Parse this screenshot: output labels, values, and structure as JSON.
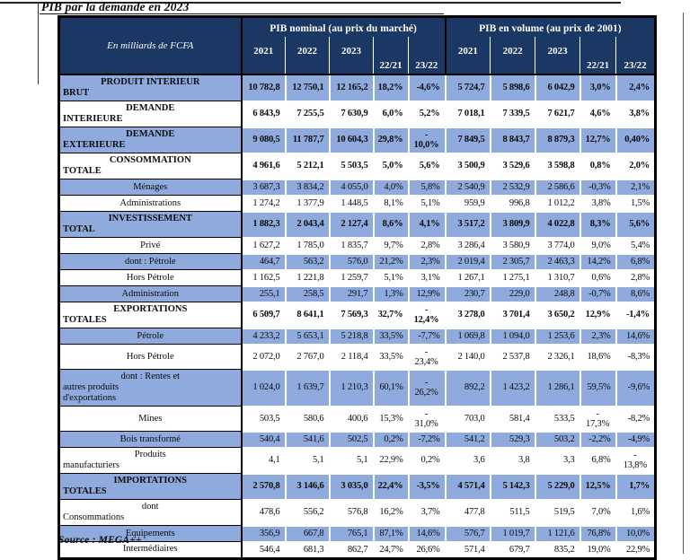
{
  "page": {
    "title": "PIB par la demande en 2023",
    "source": "Source : MEGA++"
  },
  "table": {
    "corner_label": "En milliards de FCFA",
    "groups": [
      {
        "label": "PIB nominal (au prix du marché)"
      },
      {
        "label": "PIB en volume (au prix de 2001)"
      }
    ],
    "sub_columns": [
      "2021",
      "2022",
      "2023",
      "22/21",
      "23/22"
    ],
    "colors": {
      "header_bg": "#1B3764",
      "shaded_row_bg": "#8FAADC",
      "header_text": "#FFFFFF",
      "border": "#000000"
    },
    "rows": [
      {
        "label_lines": [
          "PRODUIT INTERIEUR",
          "BRUT"
        ],
        "bold": true,
        "shaded": true,
        "nominal": [
          "10 782,8",
          "12 750,1",
          "12 165,2",
          "18,2%",
          "-4,6%"
        ],
        "volume": [
          "5 724,7",
          "5 898,6",
          "6 042,9",
          "3,0%",
          "2,4%"
        ]
      },
      {
        "label_lines": [
          "DEMANDE",
          "INTERIEURE"
        ],
        "bold": true,
        "shaded": false,
        "nominal": [
          "6 843,9",
          "7 255,5",
          "7 630,9",
          "6,0%",
          "5,2%"
        ],
        "volume": [
          "7 018,1",
          "7 339,5",
          "7 621,7",
          "4,6%",
          "3,8%"
        ]
      },
      {
        "label_lines": [
          "DEMANDE",
          "EXTERIEURE"
        ],
        "bold": true,
        "shaded": true,
        "nominal": [
          "9 080,5",
          "11 787,7",
          "10 604,3",
          "29,8%",
          "-\n10,0%"
        ],
        "volume": [
          "7 849,5",
          "8 843,7",
          "8 879,3",
          "12,7%",
          "0,40%"
        ]
      },
      {
        "label_lines": [
          "CONSOMMATION",
          "TOTALE"
        ],
        "bold": true,
        "shaded": false,
        "nominal": [
          "4 961,6",
          "5 212,1",
          "5 503,5",
          "5,0%",
          "5,6%"
        ],
        "volume": [
          "3 500,9",
          "3 529,6",
          "3 598,8",
          "0,8%",
          "2,0%"
        ]
      },
      {
        "label_lines": [
          "Ménages"
        ],
        "bold": false,
        "shaded": true,
        "nominal": [
          "3 687,3",
          "3 834,2",
          "4 055,0",
          "4,0%",
          "5,8%"
        ],
        "volume": [
          "2 540,9",
          "2 532,9",
          "2 586,6",
          "-0,3%",
          "2,1%"
        ]
      },
      {
        "label_lines": [
          "Administrations"
        ],
        "bold": false,
        "shaded": false,
        "nominal": [
          "1 274,2",
          "1 377,9",
          "1 448,5",
          "8,1%",
          "5,1%"
        ],
        "volume": [
          "959,9",
          "996,8",
          "1 012,2",
          "3,8%",
          "1,5%"
        ]
      },
      {
        "label_lines": [
          "INVESTISSEMENT",
          "TOTAL"
        ],
        "bold": true,
        "shaded": true,
        "nominal": [
          "1 882,3",
          "2 043,4",
          "2 127,4",
          "8,6%",
          "4,1%"
        ],
        "volume": [
          "3 517,2",
          "3 809,9",
          "4 022,8",
          "8,3%",
          "5,6%"
        ]
      },
      {
        "label_lines": [
          "Privé"
        ],
        "bold": false,
        "shaded": false,
        "nominal": [
          "1 627,2",
          "1 785,0",
          "1 835,7",
          "9,7%",
          "2,8%"
        ],
        "volume": [
          "3 286,4",
          "3 580,9",
          "3 774,0",
          "9,0%",
          "5,4%"
        ]
      },
      {
        "label_lines": [
          "dont : Pétrole"
        ],
        "bold": false,
        "shaded": true,
        "nominal": [
          "464,7",
          "563,2",
          "576,0",
          "21,2%",
          "2,3%"
        ],
        "volume": [
          "2 019,4",
          "2 305,7",
          "2 463,3",
          "14,2%",
          "6,8%"
        ]
      },
      {
        "label_lines": [
          "Hors Pétrole"
        ],
        "bold": false,
        "shaded": false,
        "nominal": [
          "1 162,5",
          "1 221,8",
          "1 259,7",
          "5,1%",
          "3,1%"
        ],
        "volume": [
          "1 267,1",
          "1 275,1",
          "1 310,7",
          "0,6%",
          "2,8%"
        ]
      },
      {
        "label_lines": [
          "Administration"
        ],
        "bold": false,
        "shaded": true,
        "nominal": [
          "255,1",
          "258,5",
          "291,7",
          "1,3%",
          "12,9%"
        ],
        "volume": [
          "230,7",
          "229,0",
          "248,8",
          "-0,7%",
          "8,6%"
        ]
      },
      {
        "label_lines": [
          "EXPORTATIONS",
          "TOTALES"
        ],
        "bold": true,
        "shaded": false,
        "nominal": [
          "6 509,7",
          "8 641,1",
          "7 569,3",
          "32,7%",
          "-\n12,4%"
        ],
        "volume": [
          "3 278,0",
          "3 701,4",
          "3 650,2",
          "12,9%",
          "-1,4%"
        ]
      },
      {
        "label_lines": [
          "Pétrole"
        ],
        "bold": false,
        "shaded": true,
        "nominal": [
          "4 233,2",
          "5 653,1",
          "5 218,8",
          "33,5%",
          "-7,7%"
        ],
        "volume": [
          "1 069,8",
          "1 094,0",
          "1 253,6",
          "2,3%",
          "14,6%"
        ]
      },
      {
        "label_lines": [
          "Hors Pétrole"
        ],
        "bold": false,
        "shaded": false,
        "nominal": [
          "2 072,0",
          "2 767,0",
          "2 118,4",
          "33,5%",
          "-\n23,4%"
        ],
        "volume": [
          "2 140,0",
          "2 537,8",
          "2 326,1",
          "18,6%",
          "-8,3%"
        ]
      },
      {
        "label_lines": [
          "dont : Rentes et",
          "autres produits",
          "d'exportations"
        ],
        "bold": false,
        "shaded": true,
        "nominal": [
          "1 024,0",
          "1 639,7",
          "1 210,3",
          "60,1%",
          "-\n26,2%"
        ],
        "volume": [
          "892,2",
          "1 423,2",
          "1 286,1",
          "59,5%",
          "-9,6%"
        ]
      },
      {
        "label_lines": [
          "Mines"
        ],
        "bold": false,
        "shaded": false,
        "nominal": [
          "503,5",
          "580,6",
          "400,6",
          "15,3%",
          "-\n31,0%"
        ],
        "volume": [
          "703,0",
          "581,4",
          "533,5",
          "-\n17,3%",
          "-8,2%"
        ]
      },
      {
        "label_lines": [
          "Bois transformé"
        ],
        "bold": false,
        "shaded": true,
        "nominal": [
          "540,4",
          "541,6",
          "502,5",
          "0,2%",
          "-7,2%"
        ],
        "volume": [
          "541,2",
          "529,3",
          "503,2",
          "-2,2%",
          "-4,9%"
        ]
      },
      {
        "label_lines": [
          "Produits",
          "manufacturiers"
        ],
        "bold": false,
        "shaded": false,
        "nominal": [
          "4,1",
          "5,1",
          "5,1",
          "22,9%",
          "0,2%"
        ],
        "volume": [
          "3,6",
          "3,8",
          "3,3",
          "6,8%",
          "-\n13,8%"
        ]
      },
      {
        "label_lines": [
          "IMPORTATIONS",
          "TOTALES"
        ],
        "bold": true,
        "shaded": true,
        "nominal": [
          "2 570,8",
          "3 146,6",
          "3 035,0",
          "22,4%",
          "-3,5%"
        ],
        "volume": [
          "4 571,4",
          "5 142,3",
          "5 229,0",
          "12,5%",
          "1,7%"
        ]
      },
      {
        "label_lines": [
          "dont",
          "Consommations"
        ],
        "bold": false,
        "shaded": false,
        "nominal": [
          "478,6",
          "556,2",
          "576,8",
          "16,2%",
          "3,7%"
        ],
        "volume": [
          "477,8",
          "511,5",
          "519,5",
          "7,0%",
          "1,6%"
        ]
      },
      {
        "label_lines": [
          "Equipements"
        ],
        "bold": false,
        "shaded": true,
        "nominal": [
          "356,9",
          "667,8",
          "765,1",
          "87,1%",
          "14,6%"
        ],
        "volume": [
          "576,7",
          "1 019,7",
          "1 121,6",
          "76,8%",
          "10,0%"
        ]
      },
      {
        "label_lines": [
          "Intermédiaires"
        ],
        "bold": false,
        "shaded": false,
        "nominal": [
          "546,4",
          "681,3",
          "862,7",
          "24,7%",
          "26,6%"
        ],
        "volume": [
          "571,4",
          "679,7",
          "835,2",
          "19,0%",
          "22,9%"
        ]
      }
    ]
  }
}
